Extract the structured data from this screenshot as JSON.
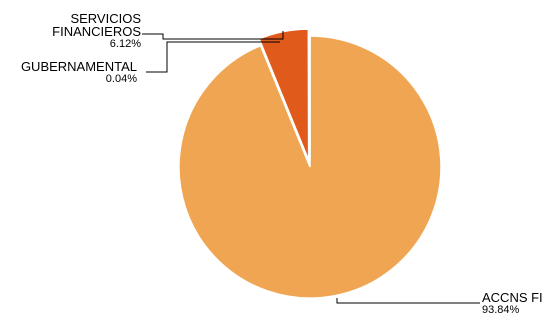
{
  "chart_data": {
    "type": "pie",
    "title": "",
    "slices": [
      {
        "label_lines": [
          "ACCNS FI"
        ],
        "value": 93.84,
        "value_label": "93.84%",
        "color": "#F0A553"
      },
      {
        "label_lines": [
          "SERVICIOS",
          "FINANCIEROS"
        ],
        "value": 6.12,
        "value_label": "6.12%",
        "color": "#E05A1C"
      },
      {
        "label_lines": [
          "GUBERNAMENTAL"
        ],
        "value": 0.04,
        "value_label": "0.04%",
        "color": "#B34512"
      }
    ],
    "legend": "none",
    "data_labels": "outside-with-leader-lines"
  }
}
